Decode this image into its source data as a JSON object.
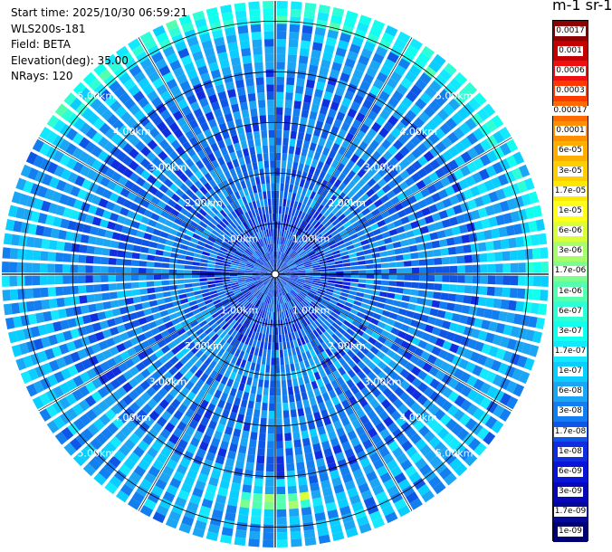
{
  "header": {
    "start_time": "Start time: 2025/10/30 06:59:21",
    "instrument": "WLS200s-181",
    "field": "Field: BETA",
    "elevation": "Elevation(deg): 35.00",
    "nrays": "NRays: 120"
  },
  "colorbar": {
    "title": "m-1 sr-1",
    "labels": [
      "0.0017",
      "0.001",
      "0.0006",
      "0.0003",
      "0.00017",
      "0.0001",
      "6e-05",
      "3e-05",
      "1.7e-05",
      "1e-05",
      "6e-06",
      "3e-06",
      "1.7e-06",
      "1e-06",
      "6e-07",
      "3e-07",
      "1.7e-07",
      "1e-07",
      "6e-08",
      "3e-08",
      "1.7e-08",
      "1e-08",
      "6e-09",
      "3e-09",
      "1.7e-09",
      "1e-09"
    ],
    "colors": [
      "#8b0000",
      "#c40000",
      "#ee1010",
      "#ff3a00",
      "#ff6a00",
      "#ff8e00",
      "#ffae00",
      "#ffcd00",
      "#ffe800",
      "#ffff1a",
      "#d8ff3a",
      "#a6ff6a",
      "#7cff8e",
      "#55ffb0",
      "#2effd6",
      "#10ffee",
      "#14e8ff",
      "#0aceff",
      "#1aa6f5",
      "#127ef0",
      "#0e56e6",
      "#0e2ee0",
      "#0a14d8",
      "#0808b8",
      "#050896",
      "#000074"
    ]
  },
  "chart_data": {
    "type": "heatmap",
    "projection": "polar-ppi",
    "field": "BETA",
    "units": "m-1 sr-1",
    "elevation_deg": 35.0,
    "nrays": 120,
    "range_rings_km": [
      1,
      2,
      3,
      4,
      5
    ],
    "ring_labels": [
      "1.00km",
      "2.00km",
      "3.00km",
      "4.00km",
      "5.00km"
    ],
    "max_range_km": 5.4,
    "color_scale": "log",
    "value_range": [
      1e-09,
      0.0017
    ],
    "regions": [
      {
        "range_km": [
          0.0,
          1.5
        ],
        "value": 1.7e-08
      },
      {
        "range_km": [
          1.5,
          4.0
        ],
        "value": 3e-08
      },
      {
        "range_km": [
          4.0,
          5.4
        ],
        "value": 6e-08
      },
      {
        "range_km": [
          5.0,
          5.4
        ],
        "azimuth_deg": [
          300,
          60
        ],
        "value": 3e-07
      },
      {
        "range_km": [
          5.0,
          5.4
        ],
        "azimuth_deg": [
          60,
          100
        ],
        "value": 1.7e-07
      },
      {
        "range_km": [
          4.4,
          4.6
        ],
        "azimuth_deg": [
          170,
          190
        ],
        "value": 1.7e-06
      }
    ]
  }
}
